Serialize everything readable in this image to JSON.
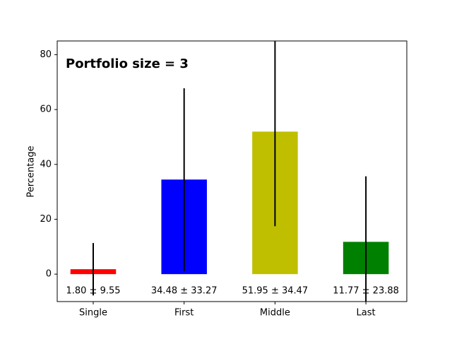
{
  "chart_data": {
    "type": "bar",
    "annotation": "Portfolio size = 3",
    "y_label": "Percentage",
    "categories": [
      "Single",
      "First",
      "Middle",
      "Last"
    ],
    "values": [
      1.8,
      34.48,
      51.95,
      11.77
    ],
    "errors": [
      9.55,
      33.27,
      34.47,
      23.88
    ],
    "value_labels": [
      "1.80 ± 9.55",
      "34.48 ± 33.27",
      "51.95 ± 34.47",
      "11.77 ± 23.88"
    ],
    "colors": [
      "#ff0000",
      "#0000ff",
      "#bfbf00",
      "#008000"
    ],
    "ylim": [
      -10,
      85
    ],
    "yticks": [
      0,
      20,
      40,
      60,
      80
    ]
  }
}
